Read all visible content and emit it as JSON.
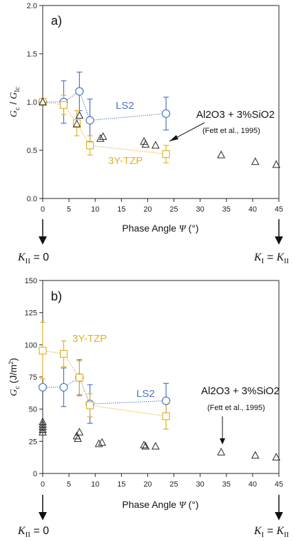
{
  "colors": {
    "ls2": "#4a74c4",
    "tzp": "#e0b028",
    "al2o3": "#222222",
    "axis": "#222222"
  },
  "chart_data": [
    {
      "type": "scatter",
      "panel_label": "a)",
      "ylim": [
        0,
        2.0
      ],
      "xlim": [
        0,
        45
      ],
      "yticks": [
        "0.0",
        "0.5",
        "1.0",
        "1.5",
        "2.0"
      ],
      "xticks": [
        "0",
        "5",
        "10",
        "15",
        "20",
        "25",
        "30",
        "35",
        "40",
        "45"
      ],
      "ylabel_G": "G",
      "ylabel_c": "c",
      "ylabel_Ic": "Ic",
      "xlabel_text": "Phase Angle",
      "xlabel_psi": "Ψ",
      "xlabel_unit": "(°)",
      "series": [
        {
          "name": "LS2",
          "name_main": "LS",
          "name_sub": "2",
          "marker": "circle",
          "x": [
            0,
            4,
            7,
            9,
            23.5
          ],
          "y": [
            1.0,
            1.0,
            1.11,
            0.81,
            0.88
          ],
          "err": [
            0,
            0.22,
            0.2,
            0.22,
            0.17
          ]
        },
        {
          "name": "3Y-TZP",
          "marker": "square",
          "x": [
            0,
            4,
            6.5,
            9,
            23.5
          ],
          "y": [
            1.0,
            0.97,
            0.78,
            0.55,
            0.46
          ],
          "err": [
            0,
            0.1,
            0.13,
            0.1,
            0.09
          ]
        },
        {
          "name": "Al2O3 + 3%SiO2",
          "marker": "triangle",
          "x": [
            0,
            6.5,
            7,
            11,
            11.5,
            19.3,
            19.6,
            21.5,
            34,
            40.5,
            44.5
          ],
          "y": [
            1.0,
            0.77,
            0.86,
            0.62,
            0.64,
            0.59,
            0.56,
            0.55,
            0.45,
            0.38,
            0.35
          ]
        }
      ],
      "annotation_main": "Al2O3 + 3%SiO2",
      "annotation_ref": "(Fett et al., 1995)",
      "label_ls2": "LS2",
      "label_tzp": "3Y-TZP"
    },
    {
      "type": "scatter",
      "panel_label": "b)",
      "ylim": [
        0,
        150
      ],
      "xlim": [
        0,
        45
      ],
      "yticks": [
        "0",
        "25",
        "50",
        "75",
        "100",
        "125",
        "150"
      ],
      "xticks": [
        "0",
        "5",
        "10",
        "15",
        "20",
        "25",
        "30",
        "35",
        "40",
        "45"
      ],
      "ylabel_G": "G",
      "ylabel_c": "c",
      "ylabel_unit": "(J/m",
      "ylabel_exp": "2",
      "xlabel_text": "Phase Angle",
      "xlabel_psi": "Ψ",
      "xlabel_unit": "(°)",
      "series": [
        {
          "name": "LS2",
          "marker": "circle",
          "x": [
            0,
            4,
            7,
            9,
            23.5
          ],
          "y": [
            67,
            67,
            74.5,
            54,
            56.5
          ],
          "err": [
            0,
            15,
            14,
            15,
            13.5
          ]
        },
        {
          "name": "3Y-TZP",
          "marker": "square",
          "x": [
            0,
            4,
            7,
            9,
            23.5
          ],
          "y": [
            95.5,
            93,
            74.5,
            53,
            44.5
          ],
          "err": [
            22,
            10,
            13,
            9,
            10
          ]
        },
        {
          "name": "Al2O3 + 3%SiO2",
          "marker": "triangle",
          "x": [
            0,
            0,
            0,
            0,
            0,
            6.5,
            6.7,
            7,
            10.7,
            11.3,
            19.3,
            19.6,
            21.5,
            34,
            40.5,
            44.5
          ],
          "y": [
            40,
            38,
            36,
            34,
            32,
            29,
            27,
            32,
            23,
            24,
            22,
            21,
            21,
            16.5,
            14,
            12.5
          ]
        }
      ],
      "annotation_main": "Al2O3 + 3%SiO2",
      "annotation_ref": "(Fett et al., 1995)",
      "label_ls2": "LS2",
      "label_tzp": "3Y-TZP"
    }
  ],
  "bottom_labels": {
    "left_K": "K",
    "left_sub": "II",
    "left_eq": " = 0",
    "right_K1": "K",
    "right_sub1": "I",
    "right_eq": " = ",
    "right_K2": "K",
    "right_sub2": "II"
  }
}
